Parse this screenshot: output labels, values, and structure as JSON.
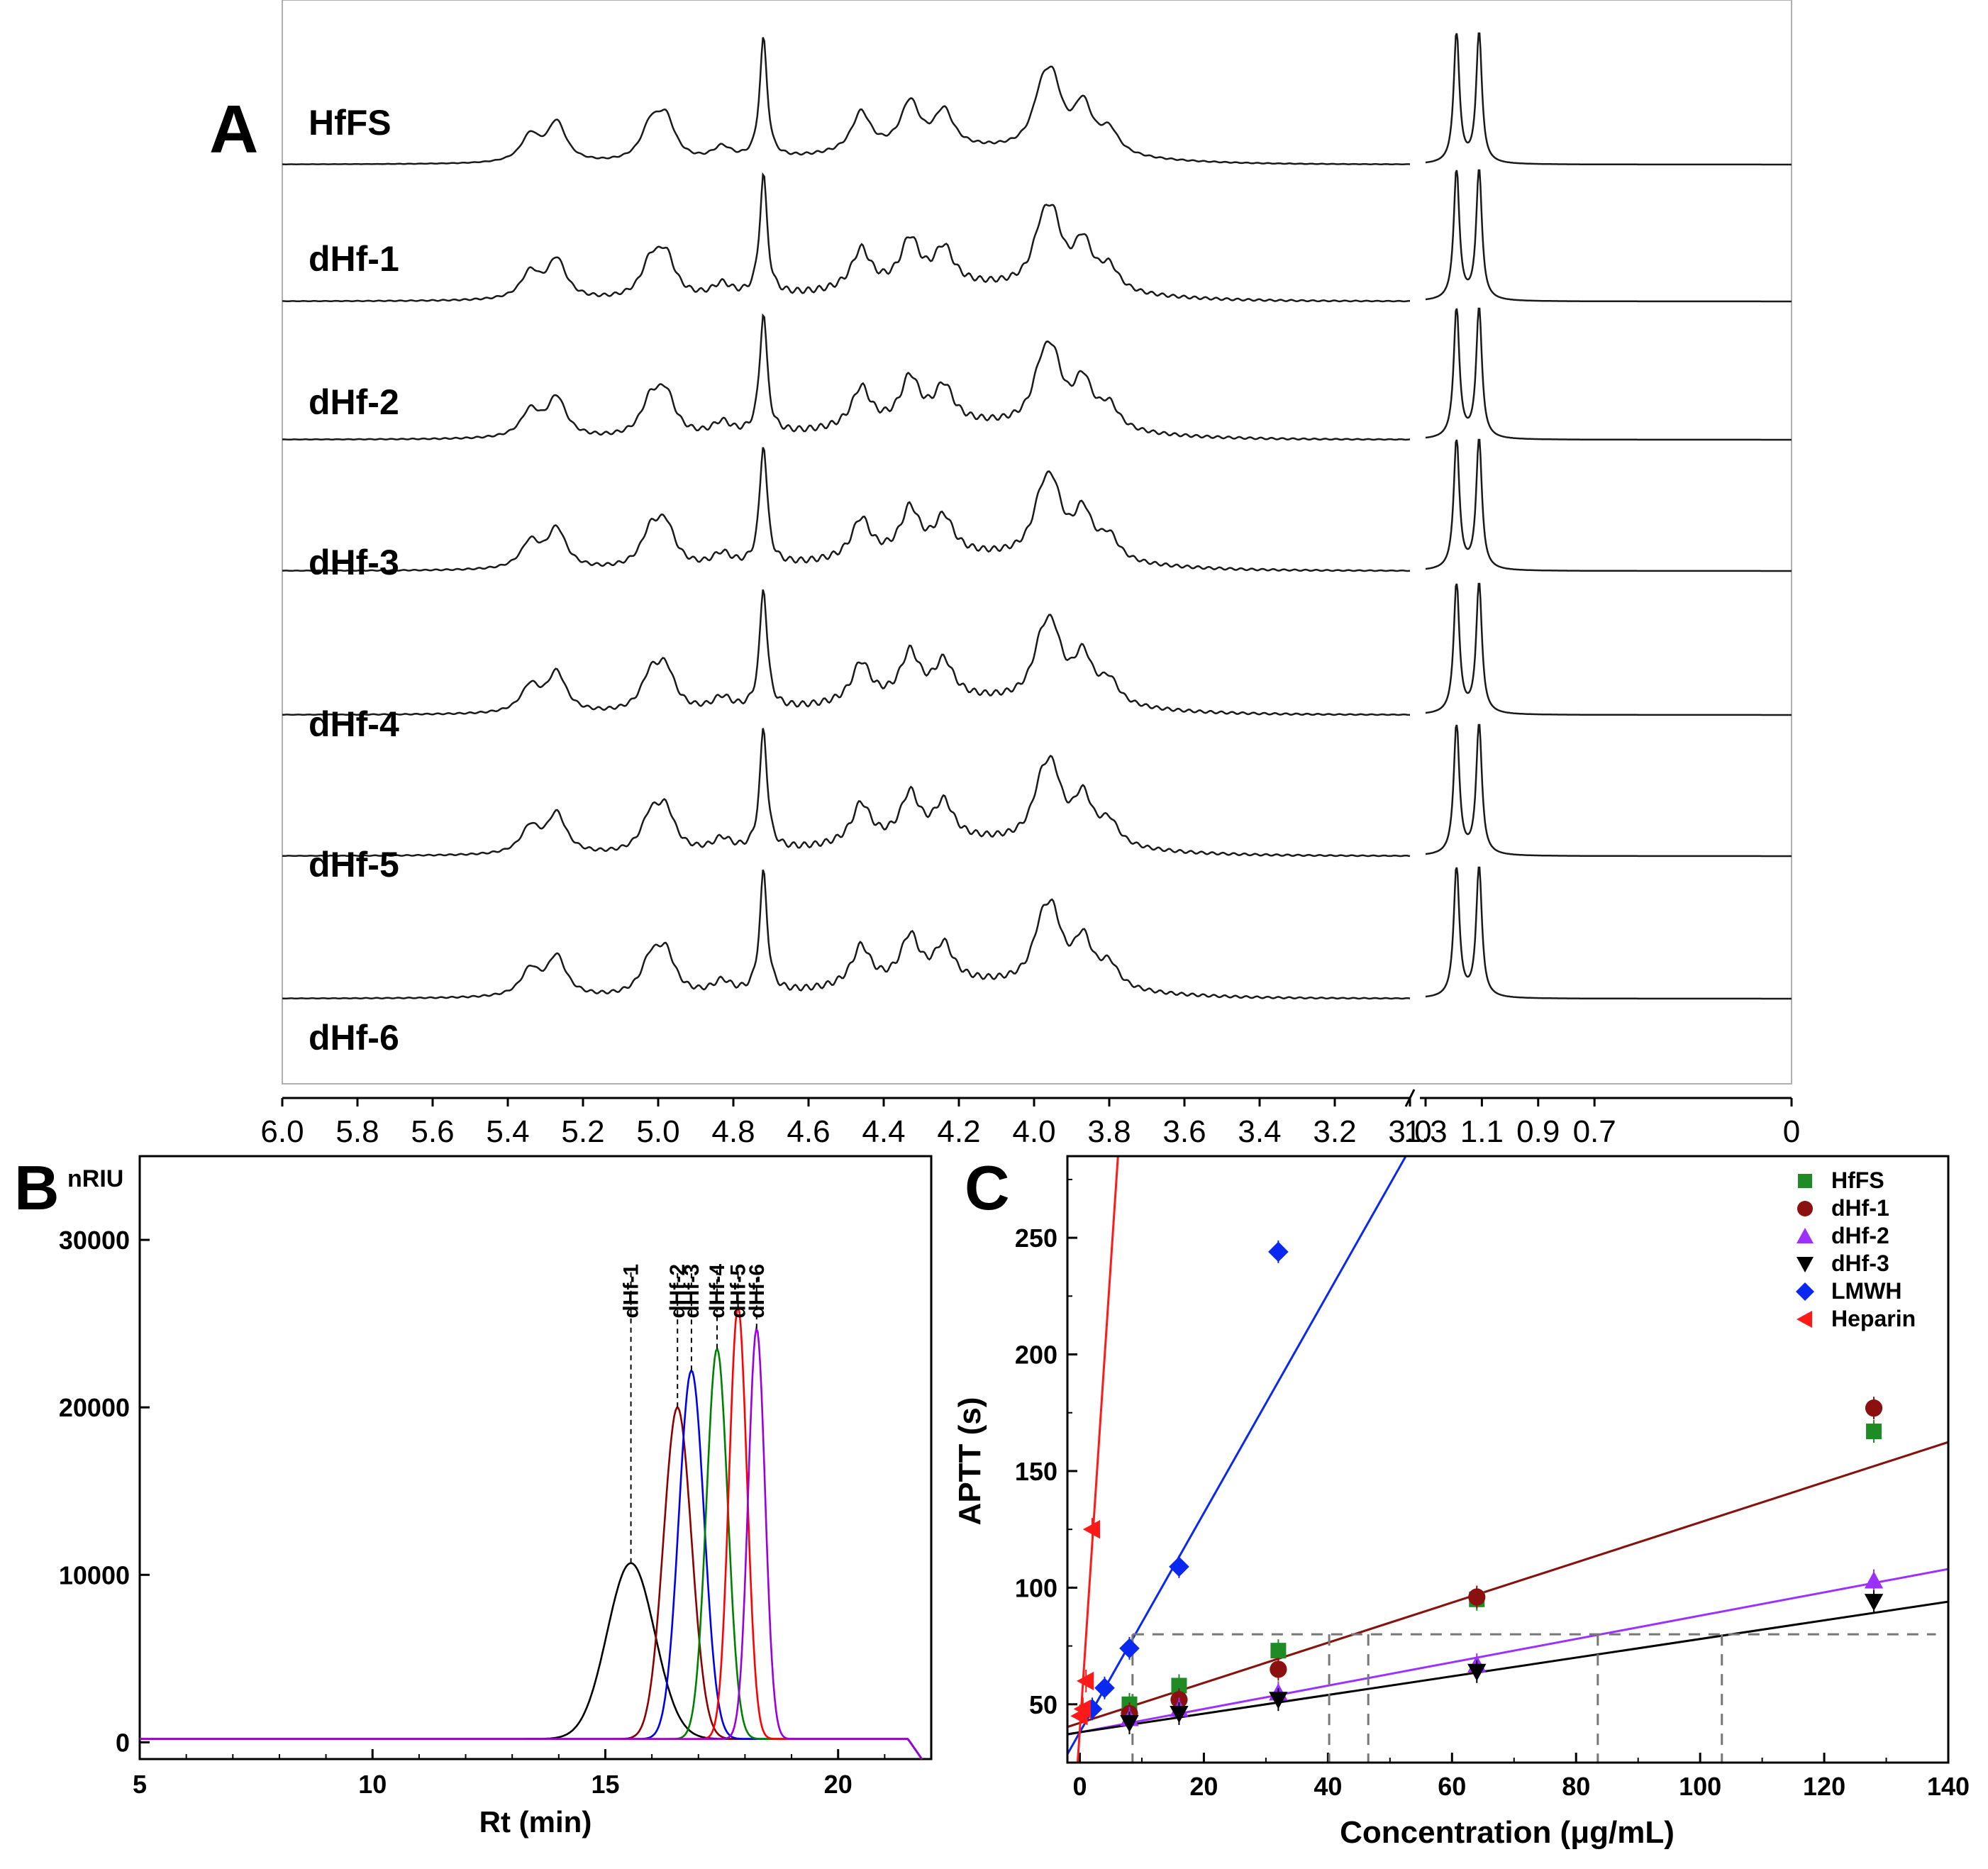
{
  "chart_data": [
    {
      "panel": "A",
      "type": "line",
      "title": "",
      "xlabel": "",
      "ylabel": "",
      "axis_break": {
        "left_end": 3.0,
        "right_start": 1.3
      },
      "x_ticks_left": [
        "6.0",
        "5.8",
        "5.6",
        "5.4",
        "5.2",
        "5.0",
        "4.8",
        "4.6",
        "4.4",
        "4.2",
        "4.0",
        "3.8",
        "3.6",
        "3.4",
        "3.2",
        "3.0"
      ],
      "x_ticks_right": [
        "1.3",
        "1.1",
        "0.9",
        "0.7",
        "0"
      ],
      "peak_shape": {
        "peaks_ppm": [
          5.34,
          5.27,
          5.02,
          4.98,
          4.83,
          4.72,
          4.46,
          4.33,
          4.24,
          3.98,
          3.95,
          3.87,
          3.8
        ],
        "peak_heights": [
          0.4,
          0.6,
          0.5,
          0.6,
          0.2,
          1.0,
          0.6,
          0.7,
          0.55,
          0.65,
          0.85,
          0.7,
          0.35
        ],
        "methyl_peaks_ppm": [
          1.19,
          1.11
        ],
        "methyl_heights": [
          1.0,
          1.0
        ]
      },
      "series": [
        {
          "name": "HfFS"
        },
        {
          "name": "dHf-1"
        },
        {
          "name": "dHf-2"
        },
        {
          "name": "dHf-3"
        },
        {
          "name": "dHf-4"
        },
        {
          "name": "dHf-5"
        },
        {
          "name": "dHf-6"
        }
      ]
    },
    {
      "panel": "B",
      "type": "line",
      "title": "",
      "xlabel": "Rt (min)",
      "ylabel": "nRIU",
      "xlim": [
        5,
        22
      ],
      "ylim": [
        -1000,
        35000
      ],
      "x_ticks": [
        "5",
        "10",
        "15",
        "20"
      ],
      "y_ticks": [
        "0",
        "10000",
        "20000",
        "30000"
      ],
      "series": [
        {
          "name": "dHf-1",
          "color": "#000000",
          "peak_rt": 15.55,
          "peak_height": 10500,
          "width": 0.85
        },
        {
          "name": "dHf-2",
          "color": "#8b0000",
          "peak_rt": 16.55,
          "peak_height": 19800,
          "width": 0.5
        },
        {
          "name": "dHf-3",
          "color": "#0000ee",
          "peak_rt": 16.85,
          "peak_height": 22000,
          "width": 0.45
        },
        {
          "name": "dHf-4",
          "color": "#008000",
          "peak_rt": 17.4,
          "peak_height": 23300,
          "width": 0.38
        },
        {
          "name": "dHf-5",
          "color": "#ff0000",
          "peak_rt": 17.85,
          "peak_height": 25800,
          "width": 0.32
        },
        {
          "name": "dHf-6",
          "color": "#9900dd",
          "peak_rt": 18.25,
          "peak_height": 24500,
          "width": 0.3
        }
      ],
      "baseline": 200
    },
    {
      "panel": "C",
      "type": "scatter",
      "title": "",
      "xlabel": "Concentration (μg/mL)",
      "ylabel": "APTT (s)",
      "xlim": [
        -2,
        140
      ],
      "ylim": [
        25,
        285
      ],
      "x_ticks": [
        "0",
        "20",
        "40",
        "60",
        "80",
        "100",
        "120",
        "140"
      ],
      "y_ticks": [
        "50",
        "100",
        "150",
        "200",
        "250"
      ],
      "reference_line_y": 80,
      "reference_x_markers": [
        8.5,
        40.2,
        46.5,
        83.5,
        103.5
      ],
      "series": [
        {
          "name": "HfFS",
          "color": "#1f8b24",
          "marker": "square",
          "x": [
            8,
            16,
            32,
            64,
            128
          ],
          "y": [
            50,
            58,
            73,
            95,
            167
          ],
          "fit": {
            "slope": 0.86,
            "intercept": 42
          }
        },
        {
          "name": "dHf-1",
          "color": "#8b1010",
          "marker": "circle",
          "x": [
            8,
            16,
            32,
            64,
            128
          ],
          "y": [
            46,
            52,
            65,
            96,
            177
          ],
          "fit": {
            "slope": 0.86,
            "intercept": 42
          }
        },
        {
          "name": "dHf-2",
          "color": "#9b30ff",
          "marker": "triangle-up",
          "x": [
            8,
            16,
            32,
            64,
            128
          ],
          "y": [
            44,
            48,
            55,
            67,
            103
          ],
          "fit": {
            "slope": 0.5,
            "intercept": 38
          }
        },
        {
          "name": "dHf-3",
          "color": "#000000",
          "marker": "triangle-down",
          "x": [
            8,
            16,
            32,
            64,
            128
          ],
          "y": [
            42,
            46,
            52,
            64,
            94
          ],
          "fit": {
            "slope": 0.4,
            "intercept": 38
          }
        },
        {
          "name": "LMWH",
          "color": "#0a28f0",
          "marker": "diamond",
          "x": [
            2,
            4,
            8,
            16,
            32
          ],
          "y": [
            48,
            57,
            74,
            109,
            244
          ],
          "fit": {
            "slope": 4.7,
            "intercept": 38
          }
        },
        {
          "name": "Heparin",
          "color": "#ff1a1a",
          "marker": "triangle-left",
          "x": [
            0,
            0.5,
            1,
            2
          ],
          "y": [
            45,
            48,
            60,
            125
          ],
          "fit": {
            "slope": 40,
            "intercept": 39
          }
        }
      ]
    }
  ],
  "panel_labels": {
    "a": "A",
    "b": "B",
    "c": "C"
  }
}
